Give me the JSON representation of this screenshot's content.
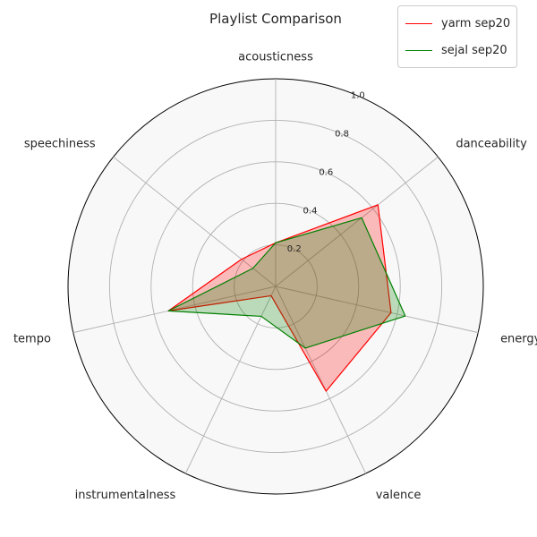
{
  "chart_data": {
    "type": "radar",
    "title": "Playlist Comparison",
    "axes": [
      "acousticness",
      "danceability",
      "energy",
      "valence",
      "instrumentalness",
      "tempo",
      "speechiness"
    ],
    "rlim": [
      0,
      1.0
    ],
    "rticks": [
      "0.2",
      "0.4",
      "0.6",
      "0.8",
      "1.0"
    ],
    "grid": true,
    "legend": "top-right",
    "series": [
      {
        "name": "yarm sep20",
        "color": "#ff0000",
        "values": [
          0.21,
          0.63,
          0.57,
          0.56,
          0.05,
          0.53,
          0.21
        ]
      },
      {
        "name": "sejal sep20",
        "color": "#008000",
        "values": [
          0.21,
          0.53,
          0.64,
          0.33,
          0.16,
          0.53,
          0.14
        ]
      }
    ]
  }
}
